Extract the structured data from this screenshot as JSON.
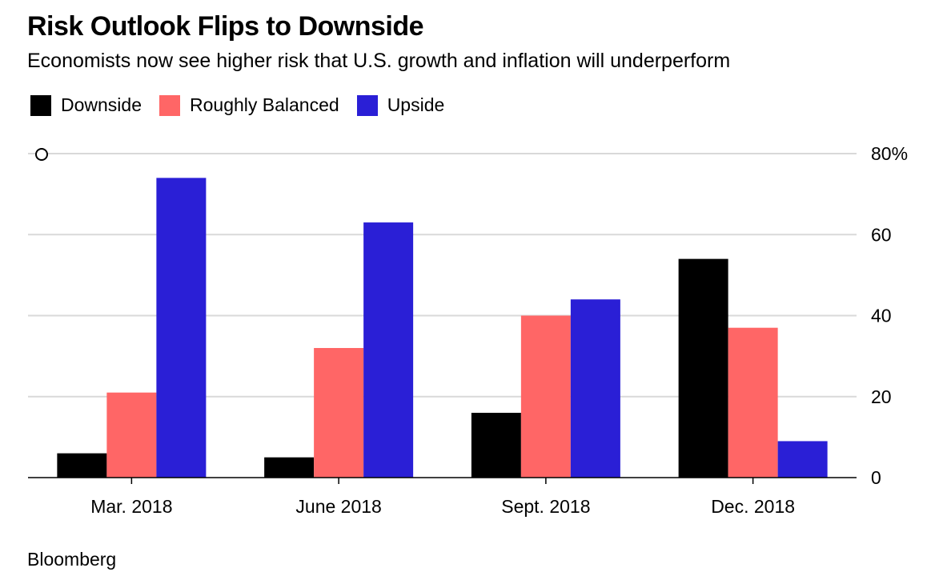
{
  "header": {
    "title": "Risk Outlook Flips to Downside",
    "subtitle": "Economists now see higher risk that U.S. growth and inflation will underperform"
  },
  "legend": {
    "items": [
      {
        "label": "Downside",
        "color": "#000000"
      },
      {
        "label": "Roughly Balanced",
        "color": "#ff6666"
      },
      {
        "label": "Upside",
        "color": "#2a1fd6"
      }
    ]
  },
  "source": "Bloomberg",
  "chart_data": {
    "type": "bar",
    "title": "Risk Outlook Flips to Downside",
    "subtitle": "Economists now see higher risk that U.S. growth and inflation will underperform",
    "categories": [
      "Mar. 2018",
      "June 2018",
      "Sept. 2018",
      "Dec. 2018"
    ],
    "series": [
      {
        "name": "Downside",
        "color": "#000000",
        "values": [
          6,
          5,
          16,
          54
        ]
      },
      {
        "name": "Roughly Balanced",
        "color": "#ff6666",
        "values": [
          21,
          32,
          40,
          37
        ]
      },
      {
        "name": "Upside",
        "color": "#2a1fd6",
        "values": [
          74,
          63,
          44,
          9
        ]
      }
    ],
    "ylim": [
      0,
      80
    ],
    "yticks": [
      0,
      20,
      40,
      60,
      80
    ],
    "ytick_labels": [
      "0",
      "20",
      "40",
      "60",
      "80%"
    ],
    "yaxis_position": "right",
    "grid": true,
    "legend_position": "top-left",
    "xlabel": "",
    "ylabel": ""
  }
}
